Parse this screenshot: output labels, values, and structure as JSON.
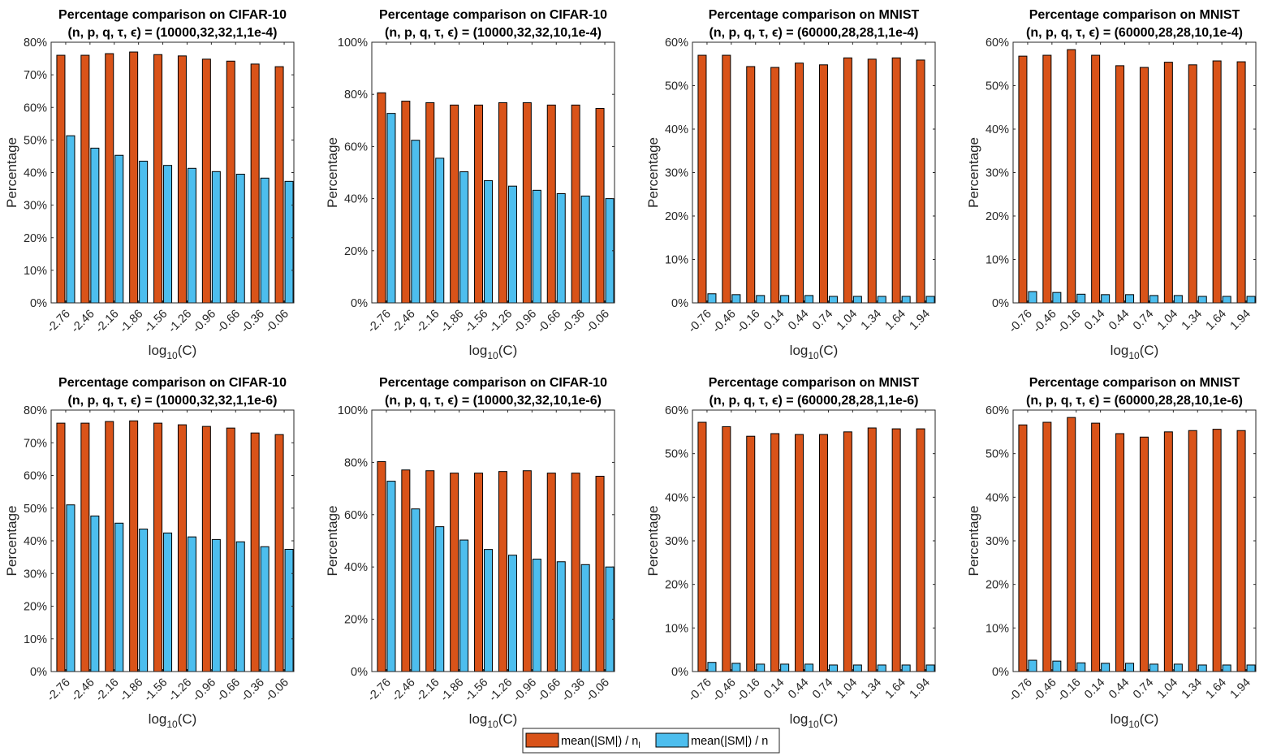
{
  "legend": {
    "entries": [
      {
        "label": "mean(|SM|) / n",
        "subscript": "l",
        "color": "#D95319"
      },
      {
        "label": "mean(|SM|) / n",
        "subscript": "",
        "color": "#4DBEEE"
      }
    ]
  },
  "chart_data": [
    {
      "type": "bar",
      "title": "Percentage comparison on CIFAR-10",
      "subtitle": "(n, p, q, τ, ϵ) = (10000,32,32,1,1e-4)",
      "xlabel": "log10(C)",
      "ylabel": "Percentage",
      "ylim": [
        0,
        80
      ],
      "yticks": [
        0,
        10,
        20,
        30,
        40,
        50,
        60,
        70,
        80
      ],
      "ytick_labels": [
        "0%",
        "10%",
        "20%",
        "30%",
        "40%",
        "50%",
        "60%",
        "70%",
        "80%"
      ],
      "categories": [
        "-2.76",
        "-2.46",
        "-2.16",
        "-1.86",
        "-1.56",
        "-1.26",
        "-0.96",
        "-0.66",
        "-0.36",
        "-0.06"
      ],
      "series": [
        {
          "name": "mean(|SM|) / n_l",
          "values": [
            76.0,
            76.0,
            76.5,
            77.0,
            76.2,
            75.8,
            74.8,
            74.2,
            73.3,
            72.5
          ]
        },
        {
          "name": "mean(|SM|) / n",
          "values": [
            51.3,
            47.5,
            45.3,
            43.5,
            42.2,
            41.3,
            40.3,
            39.5,
            38.3,
            37.3
          ]
        }
      ],
      "grid": false,
      "legend": "bottom-center (shared)"
    },
    {
      "type": "bar",
      "title": "Percentage comparison on CIFAR-10",
      "subtitle": "(n, p, q, τ, ϵ) = (10000,32,32,10,1e-4)",
      "xlabel": "log10(C)",
      "ylabel": "Percentage",
      "ylim": [
        0,
        100
      ],
      "yticks": [
        0,
        20,
        40,
        60,
        80,
        100
      ],
      "ytick_labels": [
        "0%",
        "20%",
        "40%",
        "60%",
        "80%",
        "100%"
      ],
      "categories": [
        "-2.76",
        "-2.46",
        "-2.16",
        "-1.86",
        "-1.56",
        "-1.26",
        "-0.96",
        "-0.66",
        "-0.36",
        "-0.06"
      ],
      "series": [
        {
          "name": "mean(|SM|) / n_l",
          "values": [
            80.6,
            77.4,
            76.8,
            75.9,
            75.9,
            76.8,
            76.8,
            75.9,
            75.9,
            74.6
          ]
        },
        {
          "name": "mean(|SM|) / n",
          "values": [
            72.7,
            62.4,
            55.5,
            50.3,
            46.9,
            44.8,
            43.2,
            41.9,
            41.0,
            40.0
          ]
        }
      ],
      "grid": false,
      "legend": "bottom-center (shared)"
    },
    {
      "type": "bar",
      "title": "Percentage comparison on MNIST",
      "subtitle": "(n, p, q, τ, ϵ) = (60000,28,28,1,1e-4)",
      "xlabel": "log10(C)",
      "ylabel": "Percentage",
      "ylim": [
        0,
        60
      ],
      "yticks": [
        0,
        10,
        20,
        30,
        40,
        50,
        60
      ],
      "ytick_labels": [
        "0%",
        "10%",
        "20%",
        "30%",
        "40%",
        "50%",
        "60%"
      ],
      "categories": [
        "-0.76",
        "-0.46",
        "-0.16",
        "0.14",
        "0.44",
        "0.74",
        "1.04",
        "1.34",
        "1.64",
        "1.94"
      ],
      "series": [
        {
          "name": "mean(|SM|) / n_l",
          "values": [
            57.0,
            57.0,
            54.4,
            54.2,
            55.2,
            54.8,
            56.4,
            56.1,
            56.4,
            55.9
          ]
        },
        {
          "name": "mean(|SM|) / n",
          "values": [
            2.1,
            1.9,
            1.7,
            1.7,
            1.7,
            1.5,
            1.5,
            1.5,
            1.5,
            1.5
          ]
        }
      ],
      "grid": false,
      "legend": "bottom-center (shared)"
    },
    {
      "type": "bar",
      "title": "Percentage comparison on MNIST",
      "subtitle": "(n, p, q, τ, ϵ) = (60000,28,28,10,1e-4)",
      "xlabel": "log10(C)",
      "ylabel": "Percentage",
      "ylim": [
        0,
        60
      ],
      "yticks": [
        0,
        10,
        20,
        30,
        40,
        50,
        60
      ],
      "ytick_labels": [
        "0%",
        "10%",
        "20%",
        "30%",
        "40%",
        "50%",
        "60%"
      ],
      "categories": [
        "-0.76",
        "-0.46",
        "-0.16",
        "0.14",
        "0.44",
        "0.74",
        "1.04",
        "1.34",
        "1.64",
        "1.94"
      ],
      "series": [
        {
          "name": "mean(|SM|) / n_l",
          "values": [
            56.8,
            57.0,
            58.3,
            57.0,
            54.6,
            54.2,
            55.4,
            54.8,
            55.7,
            55.5
          ]
        },
        {
          "name": "mean(|SM|) / n",
          "values": [
            2.6,
            2.4,
            2.0,
            1.9,
            1.9,
            1.7,
            1.7,
            1.5,
            1.5,
            1.5
          ]
        }
      ],
      "grid": false,
      "legend": "bottom-center (shared)"
    },
    {
      "type": "bar",
      "title": "Percentage comparison on CIFAR-10",
      "subtitle": "(n, p, q, τ, ϵ) = (10000,32,32,1,1e-6)",
      "xlabel": "log10(C)",
      "ylabel": "Percentage",
      "ylim": [
        0,
        80
      ],
      "yticks": [
        0,
        10,
        20,
        30,
        40,
        50,
        60,
        70,
        80
      ],
      "ytick_labels": [
        "0%",
        "10%",
        "20%",
        "30%",
        "40%",
        "50%",
        "60%",
        "70%",
        "80%"
      ],
      "categories": [
        "-2.76",
        "-2.46",
        "-2.16",
        "-1.86",
        "-1.56",
        "-1.26",
        "-0.96",
        "-0.66",
        "-0.36",
        "-0.06"
      ],
      "series": [
        {
          "name": "mean(|SM|) / n_l",
          "values": [
            76.0,
            76.0,
            76.5,
            76.7,
            76.0,
            75.5,
            75.0,
            74.5,
            73.0,
            72.5
          ]
        },
        {
          "name": "mean(|SM|) / n",
          "values": [
            51.0,
            47.6,
            45.4,
            43.6,
            42.4,
            41.2,
            40.4,
            39.7,
            38.2,
            37.4
          ]
        }
      ],
      "grid": false,
      "legend": "bottom-center (shared)"
    },
    {
      "type": "bar",
      "title": "Percentage comparison on CIFAR-10",
      "subtitle": "(n, p, q, τ, ϵ) = (10000,32,32,10,1e-6)",
      "xlabel": "log10(C)",
      "ylabel": "Percentage",
      "ylim": [
        0,
        100
      ],
      "yticks": [
        0,
        20,
        40,
        60,
        80,
        100
      ],
      "ytick_labels": [
        "0%",
        "20%",
        "40%",
        "60%",
        "80%",
        "100%"
      ],
      "categories": [
        "-2.76",
        "-2.46",
        "-2.16",
        "-1.86",
        "-1.56",
        "-1.26",
        "-0.96",
        "-0.66",
        "-0.36",
        "-0.06"
      ],
      "series": [
        {
          "name": "mean(|SM|) / n_l",
          "values": [
            80.3,
            77.1,
            76.8,
            75.9,
            75.9,
            76.5,
            76.8,
            75.9,
            75.9,
            74.7
          ]
        },
        {
          "name": "mean(|SM|) / n",
          "values": [
            72.8,
            62.2,
            55.4,
            50.3,
            46.7,
            44.5,
            43.0,
            42.0,
            40.9,
            40.0
          ]
        }
      ],
      "grid": false,
      "legend": "bottom-center (shared)"
    },
    {
      "type": "bar",
      "title": "Percentage comparison on MNIST",
      "subtitle": "(n, p, q, τ, ϵ) = (60000,28,28,1,1e-6)",
      "xlabel": "log10(C)",
      "ylabel": "Percentage",
      "ylim": [
        0,
        60
      ],
      "yticks": [
        0,
        10,
        20,
        30,
        40,
        50,
        60
      ],
      "ytick_labels": [
        "0%",
        "10%",
        "20%",
        "30%",
        "40%",
        "50%",
        "60%"
      ],
      "categories": [
        "-0.76",
        "-0.46",
        "-0.16",
        "0.14",
        "0.44",
        "0.74",
        "1.04",
        "1.34",
        "1.64",
        "1.94"
      ],
      "series": [
        {
          "name": "mean(|SM|) / n_l",
          "values": [
            57.2,
            56.2,
            54.0,
            54.6,
            54.4,
            54.4,
            55.0,
            55.9,
            55.7,
            55.7
          ]
        },
        {
          "name": "mean(|SM|) / n",
          "values": [
            2.1,
            1.9,
            1.7,
            1.7,
            1.7,
            1.5,
            1.5,
            1.5,
            1.5,
            1.5
          ]
        }
      ],
      "grid": false,
      "legend": "bottom-center (shared)"
    },
    {
      "type": "bar",
      "title": "Percentage comparison on MNIST",
      "subtitle": "(n, p, q, τ, ϵ) = (60000,28,28,10,1e-6)",
      "xlabel": "log10(C)",
      "ylabel": "Percentage",
      "ylim": [
        0,
        60
      ],
      "yticks": [
        0,
        10,
        20,
        30,
        40,
        50,
        60
      ],
      "ytick_labels": [
        "0%",
        "10%",
        "20%",
        "30%",
        "40%",
        "50%",
        "60%"
      ],
      "categories": [
        "-0.76",
        "-0.46",
        "-0.16",
        "0.14",
        "0.44",
        "0.74",
        "1.04",
        "1.34",
        "1.64",
        "1.94"
      ],
      "series": [
        {
          "name": "mean(|SM|) / n_l",
          "values": [
            56.6,
            57.2,
            58.3,
            57.0,
            54.6,
            53.8,
            55.0,
            55.3,
            55.6,
            55.3
          ]
        },
        {
          "name": "mean(|SM|) / n",
          "values": [
            2.6,
            2.4,
            2.0,
            1.9,
            1.9,
            1.7,
            1.7,
            1.5,
            1.5,
            1.5
          ]
        }
      ],
      "grid": false,
      "legend": "bottom-center (shared)"
    }
  ]
}
